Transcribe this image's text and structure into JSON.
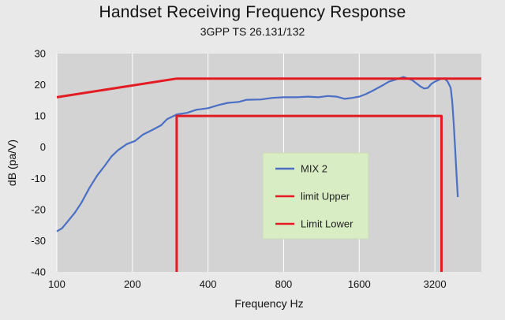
{
  "chart_data": {
    "type": "line",
    "title": "Handset Receiving Frequency Response",
    "subtitle": "3GPP TS 26.131/132",
    "xlabel": "Frequency Hz",
    "ylabel": "dB (pa/V)",
    "xscale": "log2",
    "xlim": [
      100,
      4900
    ],
    "ylim": [
      -40,
      30
    ],
    "x_ticks": [
      100,
      200,
      400,
      800,
      1600,
      3200
    ],
    "x_tick_labels": [
      "100",
      "200",
      "400",
      "800",
      "1600",
      "3200"
    ],
    "y_ticks": [
      -40,
      -30,
      -20,
      -10,
      0,
      10,
      20,
      30
    ],
    "y_tick_labels": [
      "-40",
      "-30",
      "-20",
      "-10",
      "0",
      "10",
      "20",
      "30"
    ],
    "grid": "vertical",
    "colors": {
      "plot_bg": "#d3d3d3",
      "page_bg": "#e9e9e9",
      "grid": "#ffffff",
      "mix": "#4a6fc4",
      "limit": "#e31c23",
      "legend_bg": "#d8edc4"
    },
    "legend": {
      "position": "center-right",
      "entries": [
        "MIX 2",
        "limit Upper",
        "Limit Lower"
      ]
    },
    "series": [
      {
        "name": "MIX 2",
        "color": "#4a6fc4",
        "points": [
          [
            100,
            -27
          ],
          [
            105,
            -26
          ],
          [
            110,
            -24
          ],
          [
            118,
            -21
          ],
          [
            125,
            -18
          ],
          [
            135,
            -13
          ],
          [
            145,
            -9
          ],
          [
            155,
            -6
          ],
          [
            165,
            -3
          ],
          [
            175,
            -1
          ],
          [
            190,
            1
          ],
          [
            205,
            2
          ],
          [
            220,
            4
          ],
          [
            240,
            5.5
          ],
          [
            260,
            7
          ],
          [
            275,
            9
          ],
          [
            300,
            10.5
          ],
          [
            330,
            11
          ],
          [
            360,
            12
          ],
          [
            400,
            12.5
          ],
          [
            440,
            13.5
          ],
          [
            480,
            14.2
          ],
          [
            530,
            14.5
          ],
          [
            570,
            15.2
          ],
          [
            650,
            15.3
          ],
          [
            720,
            15.8
          ],
          [
            800,
            16
          ],
          [
            900,
            16
          ],
          [
            1000,
            16.2
          ],
          [
            1100,
            16
          ],
          [
            1200,
            16.4
          ],
          [
            1300,
            16.2
          ],
          [
            1400,
            15.5
          ],
          [
            1500,
            15.8
          ],
          [
            1600,
            16.2
          ],
          [
            1700,
            17
          ],
          [
            1800,
            18
          ],
          [
            1900,
            19
          ],
          [
            2000,
            20
          ],
          [
            2100,
            21
          ],
          [
            2200,
            21.5
          ],
          [
            2300,
            22
          ],
          [
            2400,
            22.5
          ],
          [
            2500,
            22
          ],
          [
            2600,
            21.5
          ],
          [
            2700,
            20.5
          ],
          [
            2800,
            19.5
          ],
          [
            2900,
            18.8
          ],
          [
            3000,
            19
          ],
          [
            3100,
            20.3
          ],
          [
            3200,
            21
          ],
          [
            3300,
            21.5
          ],
          [
            3400,
            22
          ],
          [
            3500,
            22
          ],
          [
            3600,
            21
          ],
          [
            3700,
            19
          ],
          [
            3750,
            15
          ],
          [
            3800,
            8
          ],
          [
            3850,
            0
          ],
          [
            3900,
            -8
          ],
          [
            3950,
            -16
          ]
        ]
      },
      {
        "name": "limit Upper",
        "color": "#e31c23",
        "points": [
          [
            100,
            16
          ],
          [
            300,
            22
          ],
          [
            4900,
            22
          ]
        ]
      },
      {
        "name": "Limit Lower",
        "color": "#e31c23",
        "points": [
          [
            300,
            -40
          ],
          [
            300,
            10
          ],
          [
            3400,
            10
          ],
          [
            3400,
            -40
          ]
        ]
      }
    ]
  }
}
